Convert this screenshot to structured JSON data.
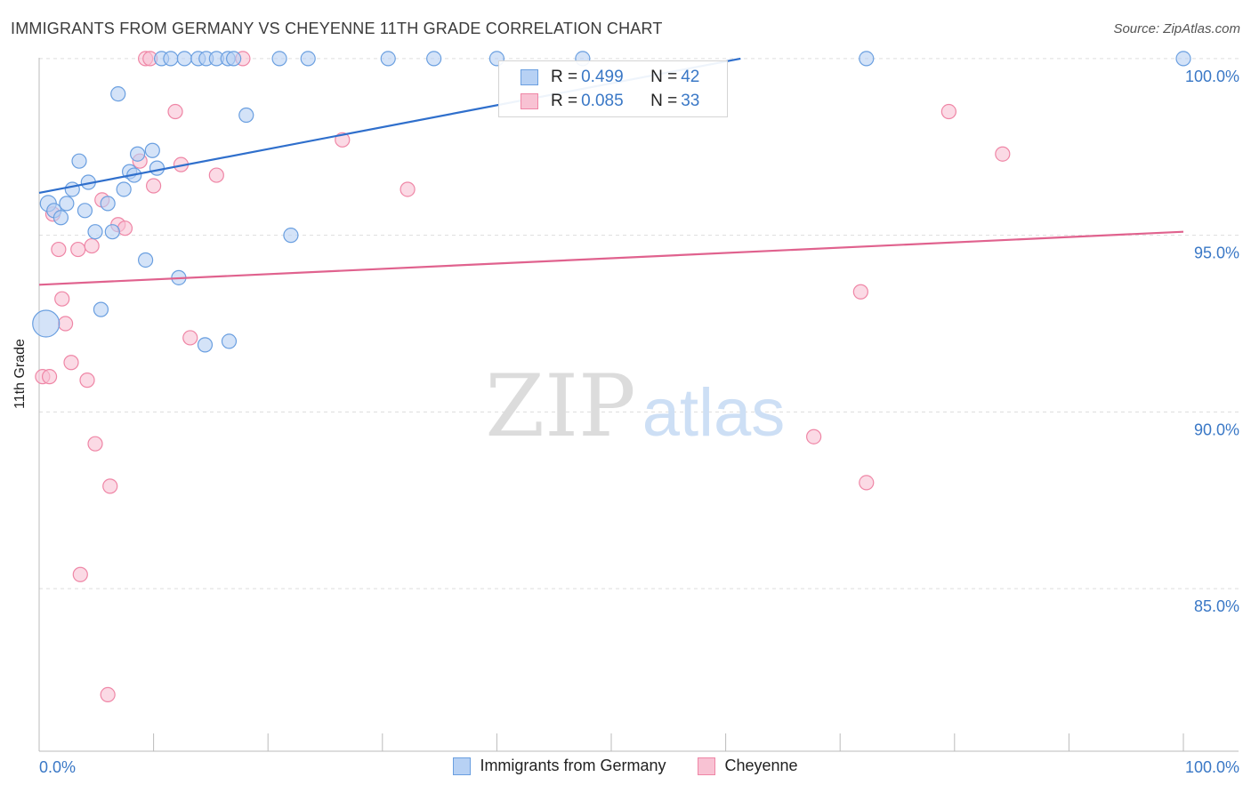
{
  "header": {
    "title": "IMMIGRANTS FROM GERMANY VS CHEYENNE 11TH GRADE CORRELATION CHART",
    "source": "Source: ZipAtlas.com"
  },
  "watermark": {
    "zip": "ZIP",
    "atlas": "atlas"
  },
  "colors": {
    "blue": "#6a9fe0",
    "blue_fill": "#b7d1f4",
    "blue_line": "#2f6fcc",
    "pink": "#ef86a6",
    "pink_fill": "#f8c2d3",
    "pink_line": "#e0628e",
    "axis_text": "#3a78c6"
  },
  "legend": {
    "rows": [
      {
        "r_label": "R = ",
        "r_value": "0.499",
        "n_label": "N = ",
        "n_value": "42"
      },
      {
        "r_label": "R = ",
        "r_value": "0.085",
        "n_label": "N = ",
        "n_value": "33"
      }
    ]
  },
  "chart_data": {
    "type": "scatter",
    "title": "IMMIGRANTS FROM GERMANY VS CHEYENNE 11TH GRADE CORRELATION CHART",
    "xlabel": "",
    "ylabel": "11th Grade",
    "xlim": [
      0,
      100
    ],
    "ylim": [
      80.4,
      100.4
    ],
    "x_tick_labels": [
      "0.0%",
      "100.0%"
    ],
    "y_ticks": [
      85,
      90,
      95,
      100
    ],
    "y_tick_labels": [
      "85.0%",
      "90.0%",
      "95.0%",
      "100.0%"
    ],
    "grid": true,
    "legend_position": "top-center",
    "series": [
      {
        "name": "Immigrants from Germany",
        "color": "#6a9fe0",
        "trend": {
          "x": [
            0,
            61.3
          ],
          "y": [
            96.2,
            100.0
          ]
        },
        "points": [
          {
            "x": 0.8,
            "y": 95.9,
            "s": 9
          },
          {
            "x": 1.3,
            "y": 95.7,
            "s": 8
          },
          {
            "x": 1.9,
            "y": 95.5,
            "s": 8
          },
          {
            "x": 2.4,
            "y": 95.9,
            "s": 8
          },
          {
            "x": 2.9,
            "y": 96.3,
            "s": 8
          },
          {
            "x": 3.5,
            "y": 97.1,
            "s": 8
          },
          {
            "x": 4.0,
            "y": 95.7,
            "s": 8
          },
          {
            "x": 4.3,
            "y": 96.5,
            "s": 8
          },
          {
            "x": 4.9,
            "y": 95.1,
            "s": 8
          },
          {
            "x": 5.4,
            "y": 92.9,
            "s": 8
          },
          {
            "x": 6.0,
            "y": 95.9,
            "s": 8
          },
          {
            "x": 6.4,
            "y": 95.1,
            "s": 8
          },
          {
            "x": 6.9,
            "y": 99.0,
            "s": 8
          },
          {
            "x": 7.4,
            "y": 96.3,
            "s": 8
          },
          {
            "x": 7.9,
            "y": 96.8,
            "s": 8
          },
          {
            "x": 8.3,
            "y": 96.7,
            "s": 8
          },
          {
            "x": 8.6,
            "y": 97.3,
            "s": 8
          },
          {
            "x": 9.3,
            "y": 94.3,
            "s": 8
          },
          {
            "x": 9.9,
            "y": 97.4,
            "s": 8
          },
          {
            "x": 10.3,
            "y": 96.9,
            "s": 8
          },
          {
            "x": 10.7,
            "y": 100.0,
            "s": 8
          },
          {
            "x": 11.5,
            "y": 100.0,
            "s": 8
          },
          {
            "x": 12.2,
            "y": 93.8,
            "s": 8
          },
          {
            "x": 12.7,
            "y": 100.0,
            "s": 8
          },
          {
            "x": 13.9,
            "y": 100.0,
            "s": 8
          },
          {
            "x": 14.6,
            "y": 100.0,
            "s": 8
          },
          {
            "x": 14.5,
            "y": 91.9,
            "s": 8
          },
          {
            "x": 15.5,
            "y": 100.0,
            "s": 8
          },
          {
            "x": 16.5,
            "y": 100.0,
            "s": 8
          },
          {
            "x": 16.6,
            "y": 92.0,
            "s": 8
          },
          {
            "x": 17.0,
            "y": 100.0,
            "s": 8
          },
          {
            "x": 18.1,
            "y": 98.4,
            "s": 8
          },
          {
            "x": 21.0,
            "y": 100.0,
            "s": 8
          },
          {
            "x": 22.0,
            "y": 95.0,
            "s": 8
          },
          {
            "x": 23.5,
            "y": 100.0,
            "s": 8
          },
          {
            "x": 30.5,
            "y": 100.0,
            "s": 8
          },
          {
            "x": 34.5,
            "y": 100.0,
            "s": 8
          },
          {
            "x": 40.0,
            "y": 100.0,
            "s": 8
          },
          {
            "x": 47.5,
            "y": 100.0,
            "s": 8
          },
          {
            "x": 72.3,
            "y": 100.0,
            "s": 8
          },
          {
            "x": 100.0,
            "y": 100.0,
            "s": 8
          },
          {
            "x": 0.6,
            "y": 92.5,
            "s": 15
          }
        ]
      },
      {
        "name": "Cheyenne",
        "color": "#ef86a6",
        "trend": {
          "x": [
            0,
            100
          ],
          "y": [
            93.6,
            95.1
          ]
        },
        "points": [
          {
            "x": 0.3,
            "y": 91.0,
            "s": 8
          },
          {
            "x": 0.9,
            "y": 91.0,
            "s": 8
          },
          {
            "x": 1.2,
            "y": 95.6,
            "s": 8
          },
          {
            "x": 1.7,
            "y": 94.6,
            "s": 8
          },
          {
            "x": 2.0,
            "y": 93.2,
            "s": 8
          },
          {
            "x": 2.3,
            "y": 92.5,
            "s": 8
          },
          {
            "x": 2.8,
            "y": 91.4,
            "s": 8
          },
          {
            "x": 3.4,
            "y": 94.6,
            "s": 8
          },
          {
            "x": 4.2,
            "y": 90.9,
            "s": 8
          },
          {
            "x": 4.6,
            "y": 94.7,
            "s": 8
          },
          {
            "x": 4.9,
            "y": 89.1,
            "s": 8
          },
          {
            "x": 5.5,
            "y": 96.0,
            "s": 8
          },
          {
            "x": 3.6,
            "y": 85.4,
            "s": 8
          },
          {
            "x": 6.0,
            "y": 82.0,
            "s": 8
          },
          {
            "x": 6.2,
            "y": 87.9,
            "s": 8
          },
          {
            "x": 6.9,
            "y": 95.3,
            "s": 8
          },
          {
            "x": 7.5,
            "y": 95.2,
            "s": 8
          },
          {
            "x": 8.8,
            "y": 97.1,
            "s": 8
          },
          {
            "x": 9.3,
            "y": 100.0,
            "s": 8
          },
          {
            "x": 9.7,
            "y": 100.0,
            "s": 8
          },
          {
            "x": 10.0,
            "y": 96.4,
            "s": 8
          },
          {
            "x": 11.9,
            "y": 98.5,
            "s": 8
          },
          {
            "x": 12.4,
            "y": 97.0,
            "s": 8
          },
          {
            "x": 13.2,
            "y": 92.1,
            "s": 8
          },
          {
            "x": 15.5,
            "y": 96.7,
            "s": 8
          },
          {
            "x": 17.8,
            "y": 100.0,
            "s": 8
          },
          {
            "x": 26.5,
            "y": 97.7,
            "s": 8
          },
          {
            "x": 32.2,
            "y": 96.3,
            "s": 8
          },
          {
            "x": 67.7,
            "y": 89.3,
            "s": 8
          },
          {
            "x": 71.8,
            "y": 93.4,
            "s": 8
          },
          {
            "x": 72.3,
            "y": 88.0,
            "s": 8
          },
          {
            "x": 79.5,
            "y": 98.5,
            "s": 8
          },
          {
            "x": 84.2,
            "y": 97.3,
            "s": 8
          }
        ]
      }
    ]
  }
}
